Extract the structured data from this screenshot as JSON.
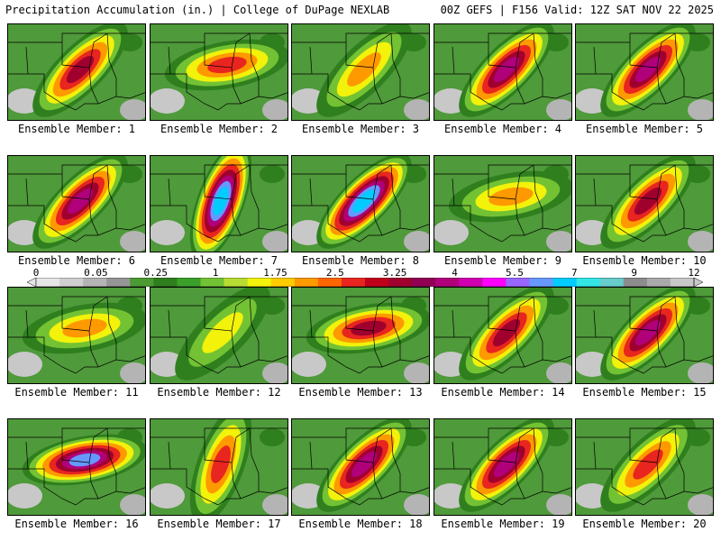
{
  "header": {
    "title": "Precipitation Accumulation (in.) | College of DuPage NEXLAB",
    "run_info": "00Z GEFS | F156 Valid: 12Z SAT NOV 22 2025"
  },
  "members": [
    {
      "label": "Ensemble Member: 1",
      "axis": "sw-ne",
      "max_level": 5
    },
    {
      "label": "Ensemble Member: 2",
      "axis": "w-e",
      "max_level": 4
    },
    {
      "label": "Ensemble Member: 3",
      "axis": "sw-ne",
      "max_level": 3
    },
    {
      "label": "Ensemble Member: 4",
      "axis": "sw-ne",
      "max_level": 6
    },
    {
      "label": "Ensemble Member: 5",
      "axis": "sw-ne",
      "max_level": 6
    },
    {
      "label": "Ensemble Member: 6",
      "axis": "sw-ne",
      "max_level": 6
    },
    {
      "label": "Ensemble Member: 7",
      "axis": "s-n",
      "max_level": 8
    },
    {
      "label": "Ensemble Member: 8",
      "axis": "sw-ne",
      "max_level": 8
    },
    {
      "label": "Ensemble Member: 9",
      "axis": "w-e",
      "max_level": 3
    },
    {
      "label": "Ensemble Member: 10",
      "axis": "sw-ne",
      "max_level": 5
    },
    {
      "label": "Ensemble Member: 11",
      "axis": "w-e",
      "max_level": 3
    },
    {
      "label": "Ensemble Member: 12",
      "axis": "sw-ne",
      "max_level": 2
    },
    {
      "label": "Ensemble Member: 13",
      "axis": "w-e",
      "max_level": 5
    },
    {
      "label": "Ensemble Member: 14",
      "axis": "sw-ne",
      "max_level": 5
    },
    {
      "label": "Ensemble Member: 15",
      "axis": "sw-ne",
      "max_level": 6
    },
    {
      "label": "Ensemble Member: 16",
      "axis": "w-e",
      "max_level": 7
    },
    {
      "label": "Ensemble Member: 17",
      "axis": "s-n",
      "max_level": 4
    },
    {
      "label": "Ensemble Member: 18",
      "axis": "sw-ne",
      "max_level": 6
    },
    {
      "label": "Ensemble Member: 19",
      "axis": "sw-ne",
      "max_level": 6
    },
    {
      "label": "Ensemble Member: 20",
      "axis": "sw-ne",
      "max_level": 4
    }
  ],
  "colorbar": {
    "tick_labels": [
      "0",
      "0.05",
      "0.25",
      "1",
      "1.75",
      "2.5",
      "3.25",
      "4",
      "5.5",
      "7",
      "9",
      "12"
    ],
    "colors": [
      "#e6e6e6",
      "#cfcfcf",
      "#b4b4b4",
      "#969696",
      "#4c9a33",
      "#2f7f1e",
      "#3aa02a",
      "#73c234",
      "#b8dc33",
      "#f2f20a",
      "#ffcc00",
      "#ff9900",
      "#ff6600",
      "#e8251f",
      "#c0001a",
      "#a0002e",
      "#900055",
      "#b0007a",
      "#d000b0",
      "#ff00ff",
      "#9966ff",
      "#6699ff",
      "#00ccff",
      "#33e6e6",
      "#66cccc",
      "#8c8c8c",
      "#aaaaaa",
      "#c8c8c8"
    ],
    "levels": [
      "#2f7f1e",
      "#73c234",
      "#f2f20a",
      "#ff9900",
      "#e8251f",
      "#a0002e",
      "#b0007a",
      "#6699ff",
      "#00ccff"
    ]
  }
}
